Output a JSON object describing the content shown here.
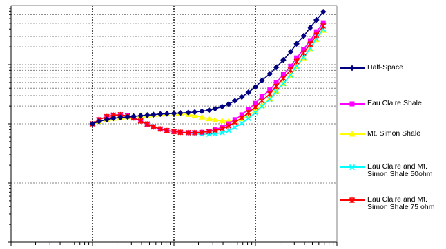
{
  "chart_data": {
    "type": "line",
    "x_scale": "log",
    "y_scale": "log",
    "xlim": [
      0.1,
      1000
    ],
    "ylim": [
      1,
      10000
    ],
    "grid": true,
    "legend_position": "right",
    "series": [
      {
        "name": "Half-Space",
        "color": "#000080",
        "marker": "diamond",
        "points": [
          [
            1.0,
            100
          ],
          [
            1.2,
            110
          ],
          [
            1.5,
            118
          ],
          [
            1.8,
            124
          ],
          [
            2.2,
            128
          ],
          [
            2.7,
            131
          ],
          [
            3.2,
            134
          ],
          [
            3.9,
            137
          ],
          [
            4.7,
            140
          ],
          [
            5.6,
            143
          ],
          [
            6.8,
            146
          ],
          [
            8.2,
            148
          ],
          [
            10,
            150
          ],
          [
            12,
            152
          ],
          [
            15,
            155
          ],
          [
            18,
            158
          ],
          [
            22,
            163
          ],
          [
            27,
            170
          ],
          [
            32,
            180
          ],
          [
            39,
            195
          ],
          [
            47,
            215
          ],
          [
            56,
            245
          ],
          [
            68,
            285
          ],
          [
            82,
            340
          ],
          [
            100,
            420
          ],
          [
            120,
            540
          ],
          [
            150,
            700
          ],
          [
            180,
            900
          ],
          [
            220,
            1200
          ],
          [
            270,
            1650
          ],
          [
            320,
            2250
          ],
          [
            390,
            3050
          ],
          [
            470,
            4200
          ],
          [
            560,
            5700
          ],
          [
            680,
            7800
          ]
        ]
      },
      {
        "name": "Eau Claire Shale",
        "color": "#ff00ff",
        "marker": "square",
        "points": [
          [
            1.0,
            100
          ],
          [
            1.2,
            118
          ],
          [
            1.5,
            132
          ],
          [
            1.8,
            140
          ],
          [
            2.2,
            142
          ],
          [
            2.7,
            136
          ],
          [
            3.2,
            126
          ],
          [
            3.9,
            112
          ],
          [
            4.7,
            99
          ],
          [
            5.6,
            89
          ],
          [
            6.8,
            82
          ],
          [
            8.2,
            77
          ],
          [
            10,
            74
          ],
          [
            12,
            72
          ],
          [
            15,
            71
          ],
          [
            18,
            71
          ],
          [
            22,
            72
          ],
          [
            27,
            75
          ],
          [
            32,
            80
          ],
          [
            39,
            88
          ],
          [
            47,
            100
          ],
          [
            56,
            118
          ],
          [
            68,
            142
          ],
          [
            82,
            176
          ],
          [
            100,
            222
          ],
          [
            120,
            288
          ],
          [
            150,
            375
          ],
          [
            180,
            500
          ],
          [
            220,
            680
          ],
          [
            270,
            940
          ],
          [
            320,
            1300
          ],
          [
            390,
            1820
          ],
          [
            470,
            2550
          ],
          [
            560,
            3600
          ],
          [
            680,
            5100
          ]
        ]
      },
      {
        "name": "Mt. Simon Shale",
        "color": "#ffff00",
        "marker": "triangle",
        "points": [
          [
            1.0,
            100
          ],
          [
            1.2,
            110
          ],
          [
            1.5,
            118
          ],
          [
            1.8,
            124
          ],
          [
            2.2,
            128
          ],
          [
            2.7,
            131
          ],
          [
            3.2,
            134
          ],
          [
            3.9,
            137
          ],
          [
            4.7,
            140
          ],
          [
            5.6,
            143
          ],
          [
            6.8,
            146
          ],
          [
            8.2,
            148
          ],
          [
            10,
            149
          ],
          [
            12,
            148
          ],
          [
            15,
            144
          ],
          [
            18,
            138
          ],
          [
            22,
            130
          ],
          [
            27,
            122
          ],
          [
            32,
            116
          ],
          [
            39,
            112
          ],
          [
            47,
            111
          ],
          [
            56,
            114
          ],
          [
            68,
            122
          ],
          [
            82,
            138
          ],
          [
            100,
            165
          ],
          [
            120,
            205
          ],
          [
            150,
            265
          ],
          [
            180,
            355
          ],
          [
            220,
            480
          ],
          [
            270,
            660
          ],
          [
            320,
            920
          ],
          [
            390,
            1300
          ],
          [
            470,
            1850
          ],
          [
            560,
            2650
          ],
          [
            680,
            3800
          ]
        ]
      },
      {
        "name": "Eau Claire and Mt. Simon Shale 50ohm",
        "color": "#00ffff",
        "marker": "x",
        "points": [
          [
            1.0,
            100
          ],
          [
            1.2,
            118
          ],
          [
            1.5,
            132
          ],
          [
            1.8,
            140
          ],
          [
            2.2,
            142
          ],
          [
            2.7,
            136
          ],
          [
            3.2,
            126
          ],
          [
            3.9,
            112
          ],
          [
            4.7,
            99
          ],
          [
            5.6,
            89
          ],
          [
            6.8,
            82
          ],
          [
            8.2,
            77
          ],
          [
            10,
            74
          ],
          [
            12,
            72
          ],
          [
            15,
            70
          ],
          [
            18,
            68
          ],
          [
            22,
            67
          ],
          [
            27,
            67
          ],
          [
            32,
            68
          ],
          [
            39,
            71
          ],
          [
            47,
            77
          ],
          [
            56,
            87
          ],
          [
            68,
            102
          ],
          [
            82,
            124
          ],
          [
            100,
            155
          ],
          [
            120,
            198
          ],
          [
            150,
            260
          ],
          [
            180,
            350
          ],
          [
            220,
            480
          ],
          [
            270,
            670
          ],
          [
            320,
            940
          ],
          [
            390,
            1330
          ],
          [
            470,
            1900
          ],
          [
            560,
            2750
          ],
          [
            680,
            4000
          ]
        ]
      },
      {
        "name": "Eau Claire and Mt. Simon Shale 75 ohm",
        "color": "#ff0000",
        "marker": "star",
        "points": [
          [
            1.0,
            100
          ],
          [
            1.2,
            118
          ],
          [
            1.5,
            132
          ],
          [
            1.8,
            140
          ],
          [
            2.2,
            142
          ],
          [
            2.7,
            136
          ],
          [
            3.2,
            126
          ],
          [
            3.9,
            112
          ],
          [
            4.7,
            99
          ],
          [
            5.6,
            89
          ],
          [
            6.8,
            82
          ],
          [
            8.2,
            77
          ],
          [
            10,
            74
          ],
          [
            12,
            72
          ],
          [
            15,
            71
          ],
          [
            18,
            71
          ],
          [
            22,
            72
          ],
          [
            27,
            74
          ],
          [
            32,
            77
          ],
          [
            39,
            83
          ],
          [
            47,
            92
          ],
          [
            56,
            106
          ],
          [
            68,
            126
          ],
          [
            82,
            154
          ],
          [
            100,
            192
          ],
          [
            120,
            245
          ],
          [
            150,
            320
          ],
          [
            180,
            430
          ],
          [
            220,
            590
          ],
          [
            270,
            810
          ],
          [
            320,
            1130
          ],
          [
            390,
            1580
          ],
          [
            470,
            2220
          ],
          [
            560,
            3150
          ],
          [
            680,
            4500
          ]
        ]
      }
    ]
  },
  "legend": {
    "items": [
      {
        "label": "Half-Space",
        "color": "#000080",
        "marker": "diamond"
      },
      {
        "label": "Eau Claire Shale",
        "color": "#ff00ff",
        "marker": "square"
      },
      {
        "label": "Mt. Simon Shale",
        "color": "#ffff00",
        "marker": "triangle"
      },
      {
        "label": "Eau Claire and Mt. Simon Shale 50ohm",
        "color": "#00ffff",
        "marker": "x"
      },
      {
        "label": "Eau Claire and Mt. Simon Shale 75 ohm",
        "color": "#ff0000",
        "marker": "star"
      }
    ]
  }
}
